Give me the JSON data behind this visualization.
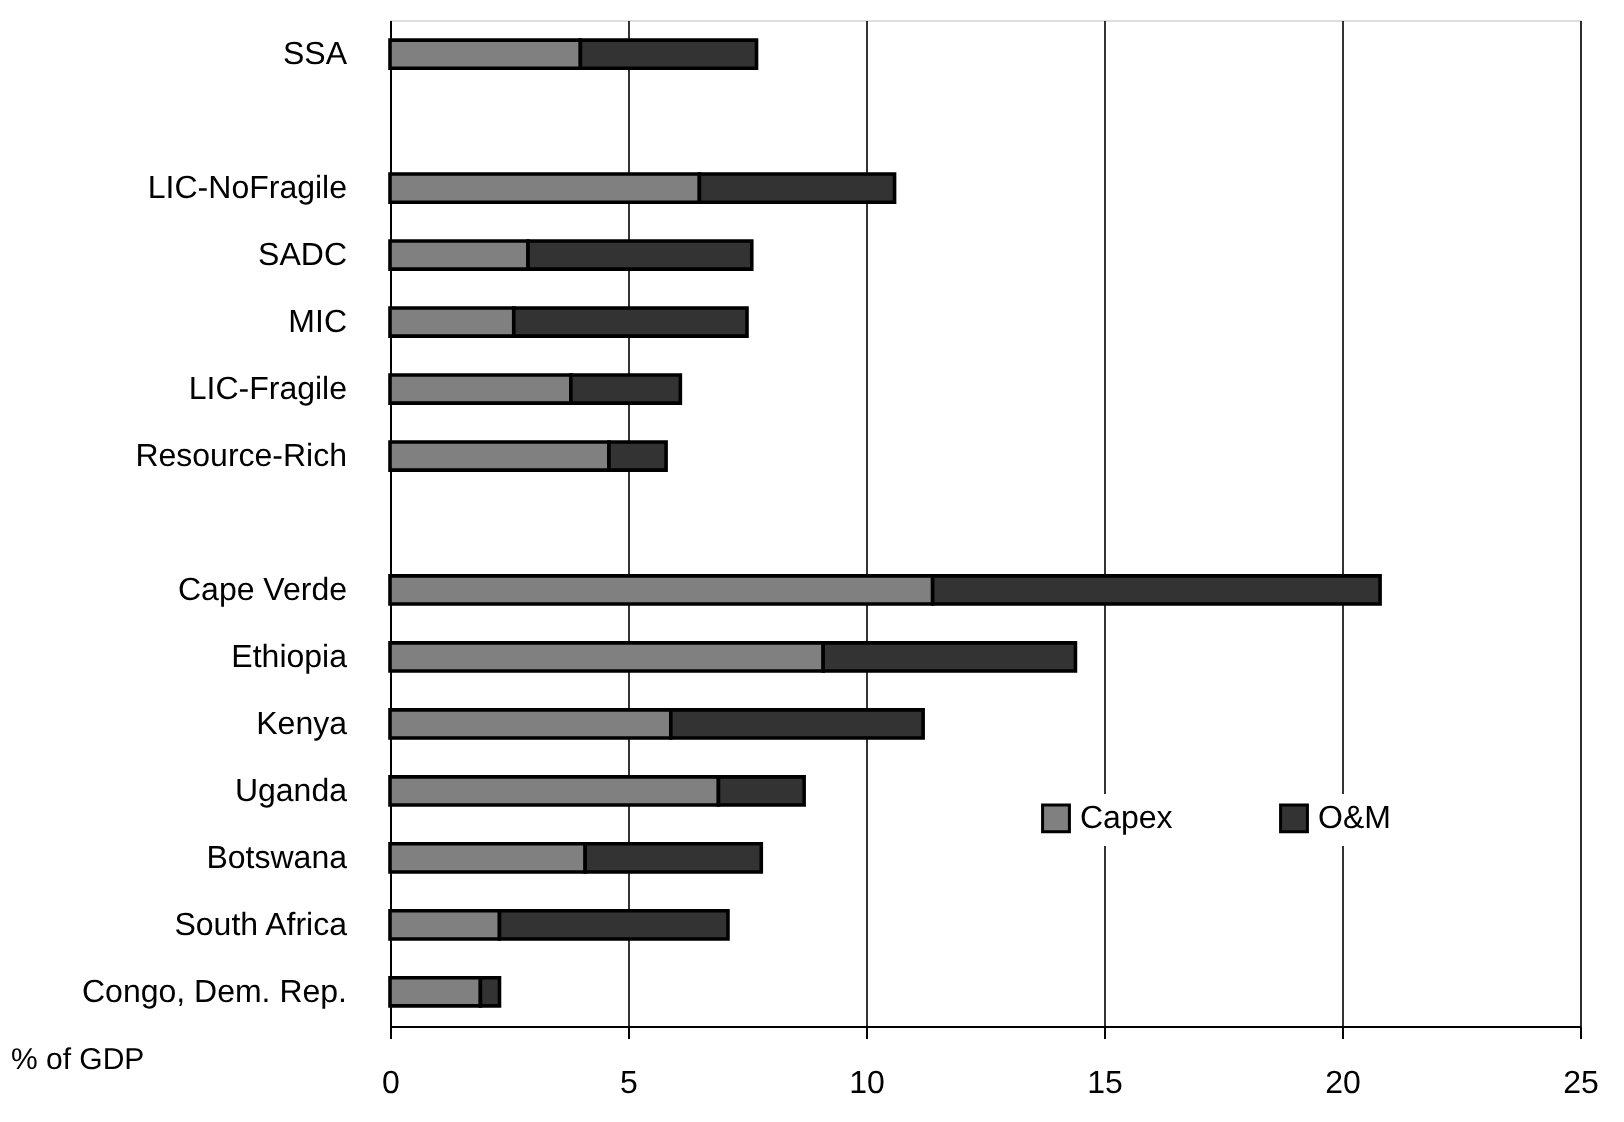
{
  "chart_data": {
    "type": "bar",
    "orientation": "horizontal",
    "stacked": true,
    "xlabel": "% of GDP",
    "categories": [
      "SSA",
      null,
      "LIC-NoFragile",
      "SADC",
      "MIC",
      "LIC-Fragile",
      "Resource-Rich",
      null,
      "Cape Verde",
      "Ethiopia",
      "Kenya",
      "Uganda",
      "Botswana",
      "South Africa",
      "Congo, Dem. Rep."
    ],
    "series": [
      {
        "name": "Capex",
        "color": "#808080",
        "values": [
          4.0,
          null,
          6.5,
          2.9,
          2.6,
          3.8,
          4.6,
          null,
          11.4,
          9.1,
          5.9,
          6.9,
          4.1,
          2.3,
          1.9
        ]
      },
      {
        "name": "O&M",
        "color": "#333333",
        "values": [
          3.7,
          null,
          4.1,
          4.7,
          4.9,
          2.3,
          1.2,
          null,
          9.4,
          5.3,
          5.3,
          1.8,
          3.7,
          4.8,
          0.4
        ]
      }
    ],
    "xlim": [
      0,
      25
    ],
    "xticks": [
      0,
      5,
      10,
      15,
      20,
      25
    ],
    "grid": "x",
    "legend": "bottom right"
  }
}
